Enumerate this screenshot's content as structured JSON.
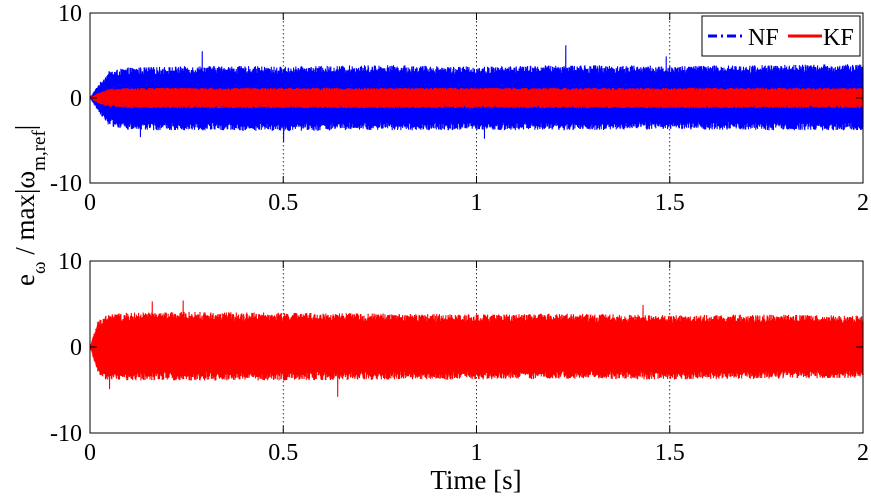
{
  "chart_data": [
    {
      "type": "line",
      "title": "",
      "xlabel": "",
      "ylabel": "",
      "xlim": [
        0,
        2
      ],
      "ylim": [
        -10,
        10
      ],
      "xticks": [
        0,
        0.5,
        1,
        1.5,
        2
      ],
      "xtick_labels": [
        "0",
        "0.5",
        "1",
        "1.5",
        "2"
      ],
      "yticks": [
        -10,
        0,
        10
      ],
      "ytick_labels": [
        "-10",
        "0",
        "10"
      ],
      "grid": "vertical dotted",
      "legend_position": "top-right",
      "series": [
        {
          "name": "NF",
          "color": "#0000ff",
          "line_style": "dash-dot",
          "envelope_x": [
            0,
            0.02,
            0.05,
            0.1,
            0.3,
            0.5,
            0.75,
            1,
            1.25,
            1.5,
            1.75,
            2
          ],
          "envelope_upper": [
            0,
            1.5,
            3.2,
            3.6,
            3.8,
            3.7,
            3.9,
            3.7,
            3.9,
            3.8,
            3.9,
            4
          ],
          "envelope_lower": [
            0,
            -1.5,
            -3.3,
            -3.8,
            -3.8,
            -3.9,
            -3.8,
            -3.8,
            -3.8,
            -3.7,
            -3.8,
            -3.8
          ],
          "peaks": [
            [
              0.29,
              5.5
            ],
            [
              0.5,
              -5.2
            ],
            [
              1.23,
              6.2
            ],
            [
              1.49,
              4.9
            ],
            [
              0.13,
              -4.6
            ],
            [
              1.02,
              -4.8
            ]
          ]
        },
        {
          "name": "KF",
          "color": "#ff0000",
          "line_style": "solid",
          "envelope_x": [
            0,
            0.02,
            0.05,
            0.1,
            0.5,
            1,
            1.5,
            2
          ],
          "envelope_upper": [
            0,
            0.6,
            1.1,
            1.2,
            1.2,
            1.2,
            1.2,
            1.2
          ],
          "envelope_lower": [
            0,
            -0.6,
            -1.1,
            -1.2,
            -1.2,
            -1.2,
            -1.2,
            -1.2
          ],
          "peaks": []
        }
      ]
    },
    {
      "type": "line",
      "title": "",
      "xlabel": "Time [s]",
      "ylabel": "",
      "xlim": [
        0,
        2
      ],
      "ylim": [
        -10,
        10
      ],
      "xticks": [
        0,
        0.5,
        1,
        1.5,
        2
      ],
      "xtick_labels": [
        "0",
        "0.5",
        "1",
        "1.5",
        "2"
      ],
      "yticks": [
        -10,
        0,
        10
      ],
      "ytick_labels": [
        "-10",
        "0",
        "10"
      ],
      "grid": "vertical dotted",
      "series": [
        {
          "name": "",
          "color": "#ff0000",
          "line_style": "solid",
          "envelope_x": [
            0,
            0.01,
            0.02,
            0.04,
            0.1,
            0.25,
            0.5,
            0.75,
            1,
            1.25,
            1.5,
            1.75,
            2
          ],
          "envelope_upper": [
            0,
            1.5,
            3,
            3.8,
            4,
            4.1,
            4,
            3.9,
            3.8,
            3.9,
            3.7,
            3.8,
            3.7
          ],
          "envelope_lower": [
            0,
            -1.5,
            -3,
            -3.8,
            -3.9,
            -3.9,
            -3.9,
            -3.8,
            -3.8,
            -3.7,
            -3.8,
            -3.7,
            -3.6
          ],
          "peaks": [
            [
              0.16,
              5.3
            ],
            [
              0.24,
              5.4
            ],
            [
              0.64,
              -5.8
            ],
            [
              1.43,
              4.9
            ],
            [
              0.05,
              -4.9
            ]
          ]
        }
      ]
    }
  ],
  "shared_ylabel": {
    "main": "e",
    "main_sub": "ω",
    "rest": " / max|ω",
    "rest_sub": "m,ref",
    "tail": "|"
  }
}
